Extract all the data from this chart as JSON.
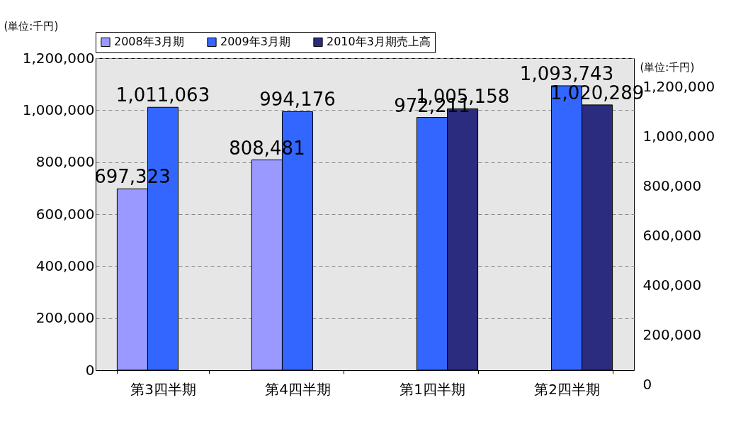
{
  "chart_data": {
    "type": "bar",
    "categories": [
      "第3四半期",
      "第4四半期",
      "第1四半期",
      "第2四半期"
    ],
    "series": [
      {
        "name": "2008年3月期",
        "color": "#9999ff",
        "values": [
          697323,
          808481,
          null,
          null
        ],
        "value_labels": [
          "697,323",
          "808,481",
          null,
          null
        ]
      },
      {
        "name": "2009年3月期",
        "color": "#3366ff",
        "values": [
          1011063,
          994176,
          972211,
          1093743
        ],
        "value_labels": [
          "1,011,063",
          "994,176",
          "972,211",
          "1,093,743"
        ]
      },
      {
        "name": "2010年3月期売上高",
        "color": "#2b2b80",
        "values": [
          null,
          null,
          1005158,
          1020289
        ],
        "value_labels": [
          null,
          null,
          "1,005,158",
          "1,020,289"
        ]
      }
    ],
    "ylabel": "(単位:千円)",
    "y2label": "(単位:千円)",
    "ylim": [
      0,
      1200000
    ],
    "yticks": [
      0,
      {
        "value": 200000,
        "label": "200,000"
      },
      {
        "value": 400000,
        "label": "400,000"
      },
      {
        "value": 600000,
        "label": "600,000"
      },
      {
        "value": 800000,
        "label": "800,000"
      },
      {
        "value": 1000000,
        "label": "1,000,000"
      },
      {
        "value": 1200000,
        "label": "1,200,000"
      }
    ],
    "y2lim": [
      0,
      1200000
    ],
    "y2ticks": [
      0,
      {
        "value": 200000,
        "label": "200,000"
      },
      {
        "value": 400000,
        "label": "400,000"
      },
      {
        "value": 600000,
        "label": "600,000"
      },
      {
        "value": 800000,
        "label": "800,000"
      },
      {
        "value": 1000000,
        "label": "1,000,000"
      },
      {
        "value": 1200000,
        "label": "1,200,000"
      }
    ],
    "grid": "y",
    "legend": "top"
  }
}
